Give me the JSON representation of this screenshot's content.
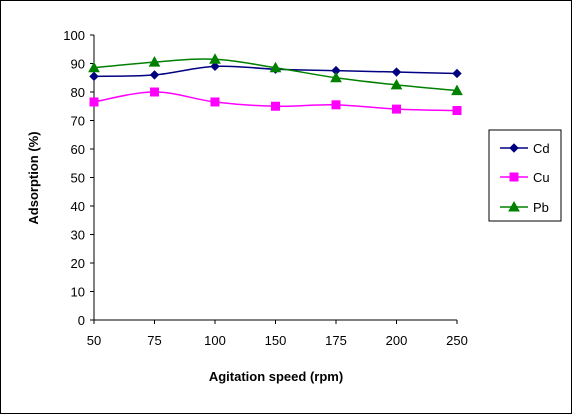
{
  "chart_data": {
    "type": "line",
    "xlabel": "Agitation speed (rpm)",
    "ylabel": "Adsorption (%)",
    "categories": [
      "50",
      "75",
      "100",
      "150",
      "175",
      "200",
      "250"
    ],
    "ylim": [
      0,
      100
    ],
    "yticks": [
      "0",
      "10",
      "20",
      "30",
      "40",
      "50",
      "60",
      "70",
      "80",
      "90",
      "100"
    ],
    "grid": false,
    "legend": "right",
    "series": [
      {
        "name": "Cd",
        "color": "#000080",
        "marker": "diamond",
        "values": [
          85.5,
          86,
          89,
          88,
          87.5,
          87,
          86.5
        ]
      },
      {
        "name": "Cu",
        "color": "#ff00ff",
        "marker": "square",
        "values": [
          76.5,
          80,
          76.5,
          75,
          75.5,
          74,
          73.5
        ]
      },
      {
        "name": "Pb",
        "color": "#008000",
        "marker": "triangle",
        "values": [
          88.5,
          90.5,
          91.5,
          88.5,
          85,
          82.5,
          80.5
        ]
      }
    ]
  }
}
